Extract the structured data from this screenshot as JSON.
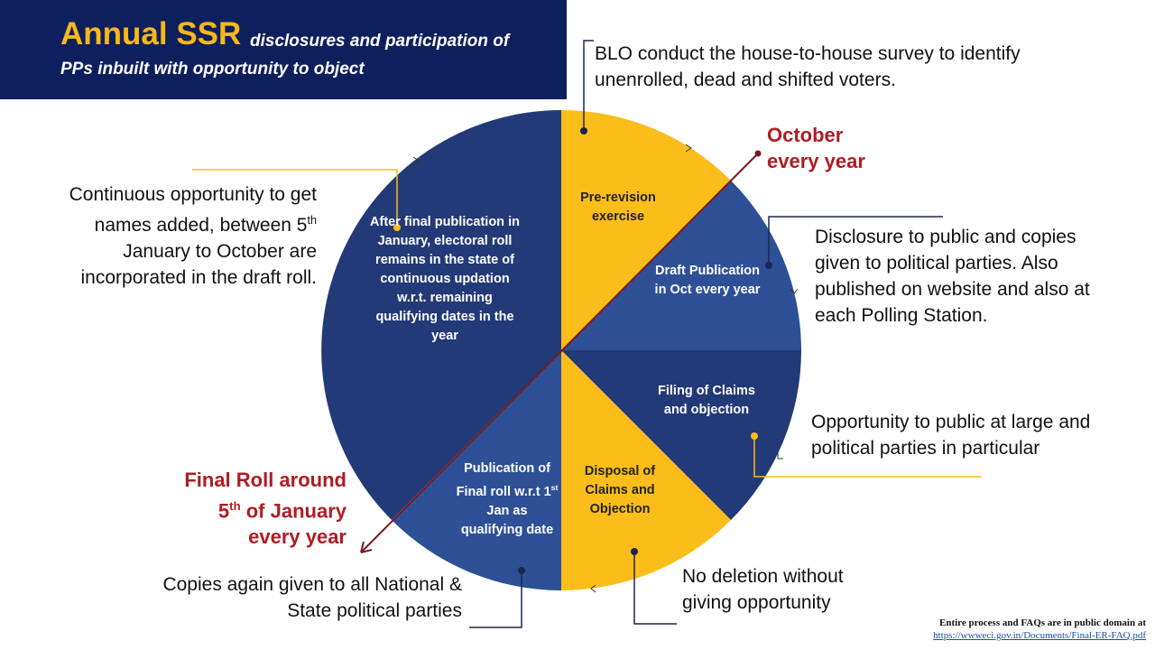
{
  "header": {
    "title_main": "Annual SSR",
    "title_sub_line1": "disclosures and participation of",
    "title_sub_line2": "PPs inbuilt with opportunity to object"
  },
  "slices": {
    "pre_revision": "Pre-revision exercise",
    "draft": "Draft Publication in Oct every year",
    "filing": "Filing of Claims and objection",
    "disposal": "Disposal of Claims and Objection",
    "publication_a": "Publication of Final roll w.r.t 1",
    "publication_sup": "st",
    "publication_b": " Jan as qualifying date",
    "after_final": "After final publication in January, electoral roll remains in the state of continuous updation w.r.t. remaining qualifying dates in the year"
  },
  "notes": {
    "blo": "BLO conduct the house-to-house survey to identify unenrolled, dead and shifted voters.",
    "disclosure": "Disclosure to public and copies given to political parties. Also published on website and also at each Polling Station.",
    "opportunity": "Opportunity to public at large and political parties in particular",
    "no_deletion": "No deletion without giving opportunity",
    "copies": "Copies again given to all National & State political parties",
    "continuous_a": "Continuous opportunity to get names added, between 5",
    "continuous_sup": "th",
    "continuous_b": " January to October are incorporated in the draft roll."
  },
  "markers": {
    "october_line1": "October",
    "october_line2": "every year",
    "final_line1": "Final Roll around",
    "final_num": "5",
    "final_sup": "th",
    "final_line2": " of January",
    "final_line3": "every year"
  },
  "footer": {
    "line1": "Entire process and FAQs are in public domain at",
    "link": "https://wwweci.gov.in/Documents/Final-ER-FAQ.pdf"
  },
  "colors": {
    "navy": "#233a78",
    "blue": "#2e5096",
    "yellow": "#fbbd1a",
    "header": "#0e1f5e",
    "red": "#b01b22"
  }
}
